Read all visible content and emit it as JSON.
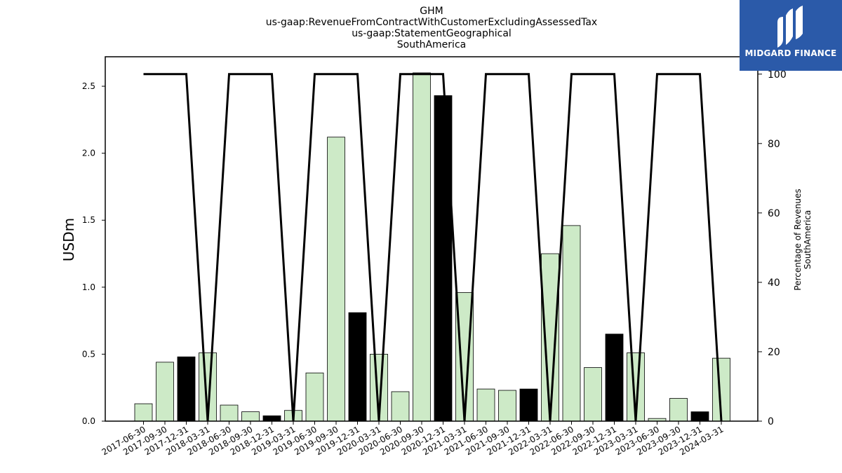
{
  "titles": [
    "GHM",
    "us-gaap:RevenueFromContractWithCustomerExcludingAssessedTax",
    "us-gaap:StatementGeographical",
    "SouthAmerica"
  ],
  "logo": {
    "text": "MIDGARD FINANCE",
    "icon": "midgard-logo-icon",
    "color": "#2b5aa9"
  },
  "chart_data": {
    "type": "bar",
    "ylabel": "USDm",
    "y2label": [
      "Percentage of Revenues",
      "SouthAmerica"
    ],
    "ylim": [
      0,
      2.72
    ],
    "y2lim": [
      0,
      105
    ],
    "yticks": [
      "0.0",
      "0.5",
      "1.0",
      "1.5",
      "2.0",
      "2.5"
    ],
    "y2ticks": [
      "0",
      "20",
      "40",
      "60",
      "80",
      "100"
    ],
    "grid": false,
    "legend": "none",
    "categories": [
      "2017-06-30",
      "2017-09-30",
      "2017-12-31",
      "2018-03-31",
      "2018-06-30",
      "2018-09-30",
      "2018-12-31",
      "2019-03-31",
      "2019-06-30",
      "2019-09-30",
      "2019-12-31",
      "2020-03-31",
      "2020-06-30",
      "2020-09-30",
      "2020-12-31",
      "2021-03-31",
      "2021-06-30",
      "2021-09-30",
      "2021-12-31",
      "2022-03-31",
      "2022-06-30",
      "2022-09-30",
      "2022-12-31",
      "2023-03-31",
      "2023-06-30",
      "2023-09-30",
      "2023-12-31",
      "2024-03-31"
    ],
    "values": [
      0.13,
      0.44,
      0.48,
      0.51,
      0.12,
      0.07,
      0.04,
      0.08,
      0.36,
      2.12,
      0.81,
      0.5,
      0.22,
      2.6,
      2.43,
      0.96,
      0.24,
      0.23,
      0.24,
      1.25,
      1.46,
      0.4,
      0.65,
      0.51,
      0.02,
      0.17,
      0.07,
      0.47
    ],
    "highlight": [
      false,
      false,
      true,
      false,
      false,
      false,
      true,
      false,
      false,
      false,
      true,
      false,
      false,
      false,
      true,
      false,
      false,
      false,
      true,
      false,
      false,
      false,
      true,
      false,
      false,
      false,
      true,
      false
    ],
    "percentage": [
      100,
      100,
      100,
      0,
      100,
      100,
      100,
      0,
      100,
      100,
      100,
      0,
      100,
      100,
      100,
      0,
      100,
      100,
      100,
      0,
      100,
      100,
      100,
      0,
      100,
      100,
      100,
      0
    ],
    "colors": {
      "bar": "#cdeac7",
      "highlight": "#000000",
      "line": "#000000"
    }
  }
}
